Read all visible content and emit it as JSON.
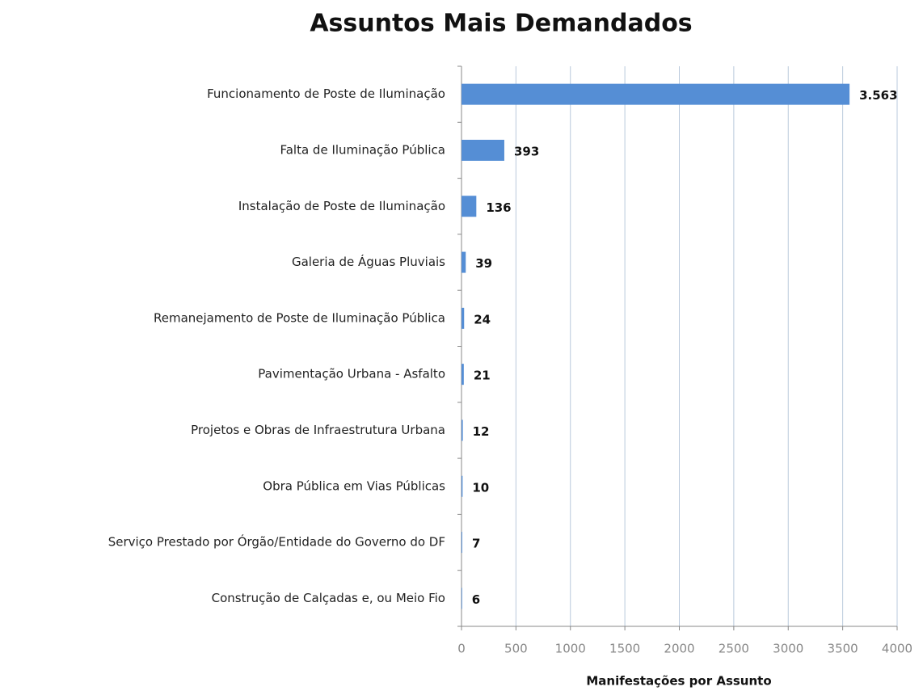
{
  "chart_data": {
    "type": "bar",
    "orientation": "horizontal",
    "title": "Assuntos Mais Demandados",
    "x_label": "Manifestações  por Assunto",
    "categories": [
      "Funcionamento de Poste de Iluminação",
      "Falta de Iluminação Pública",
      "Instalação de Poste de Iluminação",
      "Galeria de Águas Pluviais",
      "Remanejamento de Poste de Iluminação Pública",
      "Pavimentação Urbana - Asfalto",
      "Projetos e Obras de Infraestrutura Urbana",
      "Obra Pública em Vias Públicas",
      "Serviço Prestado por Órgão/Entidade do Governo do DF",
      "Construção de Calçadas e, ou Meio Fio"
    ],
    "values": [
      3563,
      393,
      136,
      39,
      24,
      21,
      12,
      10,
      7,
      6
    ],
    "value_labels": [
      "3.563",
      "393",
      "136",
      "39",
      "24",
      "21",
      "12",
      "10",
      "7",
      "6"
    ],
    "color": "#558ed5",
    "xlim": [
      0,
      4000
    ],
    "xticks": [
      0,
      500,
      1000,
      1500,
      2000,
      2500,
      3000,
      3500,
      4000
    ],
    "grid": true
  }
}
